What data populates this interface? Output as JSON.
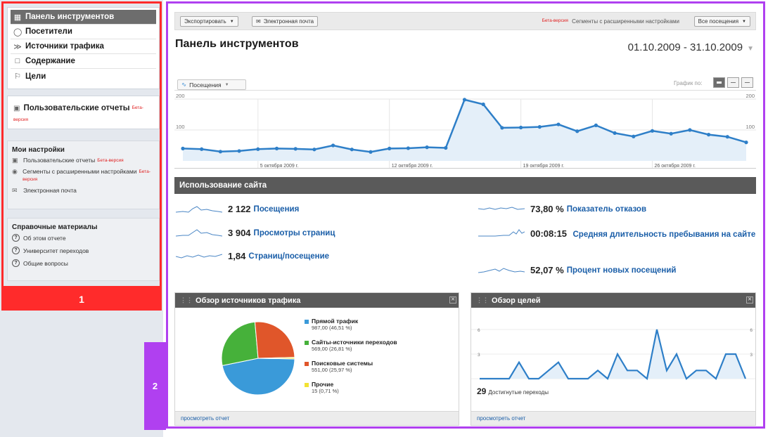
{
  "sidebar": {
    "nav": [
      {
        "label": "Панель инструментов",
        "icon": "dashboard-icon",
        "active": true
      },
      {
        "label": "Посетители",
        "icon": "person-icon"
      },
      {
        "label": "Источники трафика",
        "icon": "traffic-sources-icon"
      },
      {
        "label": "Содержание",
        "icon": "content-page-icon"
      },
      {
        "label": "Цели",
        "icon": "flag-icon"
      }
    ],
    "custom_reports": {
      "label": "Пользовательские отчеты",
      "beta": "Бета-версия"
    },
    "my_settings": {
      "title": "Мои настройки",
      "items": [
        {
          "label": "Пользовательские отчеты",
          "beta": "Бета-версия"
        },
        {
          "label": "Сегменты с расширенными настройками",
          "beta": "Бета-версия"
        },
        {
          "label": "Электронная почта"
        }
      ]
    },
    "help": {
      "title": "Справочные материалы",
      "items": [
        "Об этом отчете",
        "Университет переходов",
        "Общие вопросы"
      ]
    },
    "section_tag": "1"
  },
  "main": {
    "section_tag": "2",
    "toolbar": {
      "export_label": "Экспортировать",
      "email_label": "Электронная почта",
      "beta": "Бета-версия",
      "segments_label": "Сегменты с расширенными настройками",
      "segment_value": "Все посещения"
    },
    "title": "Панель инструментов",
    "date_range": "01.10.2009 - 31.10.2009",
    "metric_label": "Посещения",
    "graph_by_label": "График по:",
    "site_usage": {
      "title": "Использование сайта",
      "left": [
        {
          "value": "2 122",
          "label": "Посещения"
        },
        {
          "value": "3 904",
          "label": "Просмотры страниц"
        },
        {
          "value": "1,84",
          "label": "Страниц/посещение"
        }
      ],
      "right": [
        {
          "value": "73,80 %",
          "label": "Показатель отказов"
        },
        {
          "value": "00:08:15",
          "label": "Средняя длительность пребывания на сайте"
        },
        {
          "value": "52,07 %",
          "label": "Процент новых посещений"
        }
      ]
    },
    "traffic_panel": {
      "title": "Обзор источников трафика",
      "footer": "просмотреть отчет",
      "legend": [
        {
          "name": "Прямой трафик",
          "detail": "987,00 (46,51 %)",
          "color": "#3a9ad9"
        },
        {
          "name": "Сайты-источники переходов",
          "detail": "569,00 (26,81 %)",
          "color": "#46b13a"
        },
        {
          "name": "Поисковые системы",
          "detail": "551,00 (25,97 %)",
          "color": "#e0562a"
        },
        {
          "name": "Прочие",
          "detail": "15 (0,71 %)",
          "color": "#f2e233"
        }
      ]
    },
    "goals_panel": {
      "title": "Обзор целей",
      "footer": "просмотреть отчет",
      "total": "29",
      "total_label": "Достигнутые переходы"
    }
  },
  "chart_data": [
    {
      "type": "area",
      "series": [
        {
          "values": [
            40,
            38,
            30,
            32,
            38,
            40,
            39,
            37,
            50,
            37,
            29,
            40,
            41,
            44,
            42,
            198,
            183,
            107,
            108,
            110,
            118,
            96,
            115,
            90,
            79,
            97,
            88,
            100,
            85,
            78,
            60
          ]
        }
      ],
      "x": [
        "1",
        "2",
        "3",
        "4",
        "5",
        "6",
        "7",
        "8",
        "9",
        "10",
        "11",
        "12",
        "13",
        "14",
        "15",
        "16",
        "17",
        "18",
        "19",
        "20",
        "21",
        "22",
        "23",
        "24",
        "25",
        "26",
        "27",
        "28",
        "29",
        "30",
        "31"
      ],
      "tick_labels": [
        "5 октября 2009 г.",
        "12 октября 2009 г.",
        "19 октября 2009 г.",
        "26 октября 2009 г."
      ],
      "y_ticks": [
        "100",
        "200"
      ],
      "ylim": [
        0,
        200
      ],
      "color": "#2e7fc8"
    },
    {
      "type": "pie",
      "categories": [
        "Прямой трафик",
        "Сайты-источники переходов",
        "Поисковые системы",
        "Прочие"
      ],
      "values": [
        987,
        569,
        551,
        15
      ],
      "colors": [
        "#3a9ad9",
        "#46b13a",
        "#e0562a",
        "#f2e233"
      ]
    },
    {
      "type": "area",
      "series": [
        {
          "values": [
            0,
            0,
            0,
            0,
            2,
            0,
            0,
            1,
            2,
            0,
            0,
            0,
            1,
            0,
            3,
            1,
            1,
            0,
            6,
            1,
            3,
            0,
            1,
            1,
            0,
            3,
            3,
            0
          ]
        }
      ],
      "y_ticks": [
        "0",
        "3",
        "6"
      ],
      "ylim": [
        0,
        6
      ],
      "color": "#2e7fc8"
    }
  ]
}
